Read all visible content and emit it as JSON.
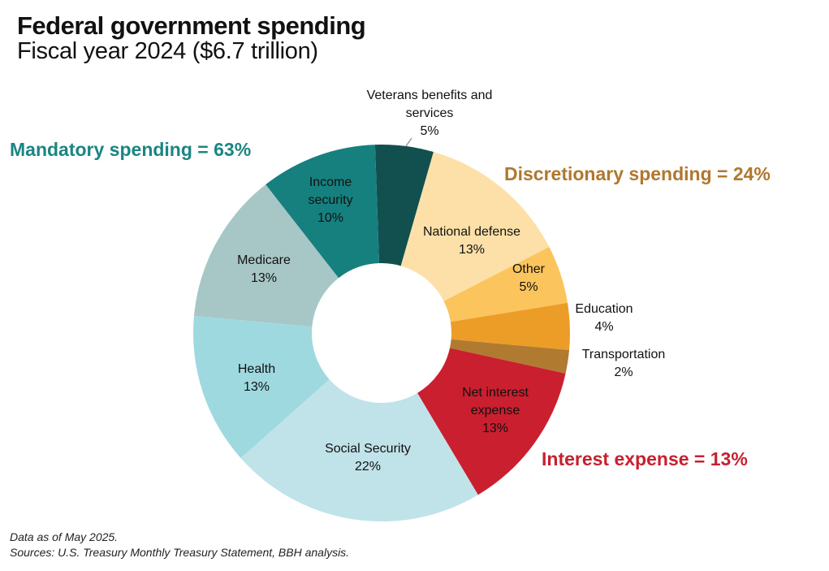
{
  "header": {
    "title": "Federal government spending",
    "subtitle": "Fiscal year 2024 ($6.7 trillion)"
  },
  "groups": {
    "mandatory": {
      "label": "Mandatory spending = 63%",
      "color": "#1a8582"
    },
    "discretionary": {
      "label": "Discretionary spending = 24%",
      "color": "#b0772e"
    },
    "interest": {
      "label": "Interest expense = 13%",
      "color": "#c7202f"
    }
  },
  "footer": {
    "note": "Data as of May 2025.",
    "sources": "Sources: U.S. Treasury Monthly Treasury Statement, BBH analysis."
  },
  "chart_data": {
    "type": "pie",
    "donut": true,
    "title": "Federal government spending",
    "subtitle": "Fiscal year 2024 ($6.7 trillion)",
    "total_label": "$6.7 trillion",
    "unit": "%",
    "slices": [
      {
        "label": "Veterans benefits and services",
        "lines": [
          "Veterans benefits and",
          "services",
          "5%"
        ],
        "value": 5,
        "color": "#124f4f",
        "group": "mandatory",
        "label_outside": true
      },
      {
        "label": "National defense",
        "lines": [
          "National defense",
          "13%"
        ],
        "value": 13,
        "color": "#fde0a8",
        "group": "discretionary"
      },
      {
        "label": "Other",
        "lines": [
          "Other",
          "5%"
        ],
        "value": 5,
        "color": "#fcc45c",
        "group": "discretionary"
      },
      {
        "label": "Education",
        "lines": [
          "Education",
          "4%"
        ],
        "value": 4,
        "color": "#ec9d27",
        "group": "discretionary",
        "label_outside": true
      },
      {
        "label": "Transportation",
        "lines": [
          "Transportation",
          "2%"
        ],
        "value": 2,
        "color": "#b07a31",
        "group": "discretionary",
        "label_outside": true
      },
      {
        "label": "Net interest expense",
        "lines": [
          "Net interest",
          "expense",
          "13%"
        ],
        "value": 13,
        "color": "#c91f2f",
        "group": "interest"
      },
      {
        "label": "Social Security",
        "lines": [
          "Social Security",
          "22%"
        ],
        "value": 22,
        "color": "#bfe3e8",
        "group": "mandatory"
      },
      {
        "label": "Health",
        "lines": [
          "Health",
          "13%"
        ],
        "value": 13,
        "color": "#9fd9e0",
        "group": "mandatory"
      },
      {
        "label": "Medicare",
        "lines": [
          "Medicare",
          "13%"
        ],
        "value": 13,
        "color": "#a7c7c7",
        "group": "mandatory"
      },
      {
        "label": "Income security",
        "lines": [
          "Income",
          "security",
          "10%"
        ],
        "value": 10,
        "color": "#16807f",
        "group": "mandatory"
      }
    ]
  }
}
